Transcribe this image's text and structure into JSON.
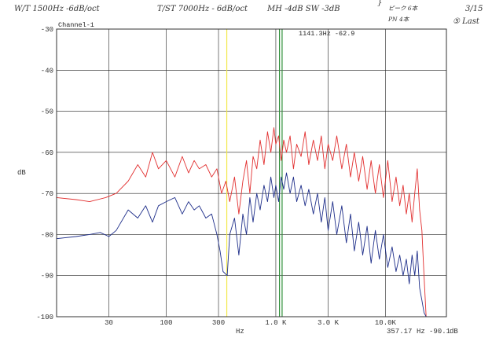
{
  "annotations": {
    "line1_a": "W/T  1500Hz -6dB/oct",
    "line1_b": "T/ST  7000Hz - 6dB/oct",
    "line1_c": "MH -4dB  SW -3dB",
    "side_top": "ピーク 6本",
    "side_bot": "PN 4本",
    "date": "3/15",
    "run": "⑤ Last"
  },
  "chart_data": {
    "type": "line",
    "title": "Channel-1",
    "xscale": "log",
    "xlim": [
      10,
      36000
    ],
    "ylim": [
      -100,
      -30
    ],
    "grid": true,
    "xlabel": "Hz",
    "ylabel": "dB",
    "y_ticks": [
      -30,
      -40,
      -50,
      -60,
      -70,
      -80,
      -90,
      -100
    ],
    "x_ticks": [
      {
        "value": 30,
        "label": "30"
      },
      {
        "value": 100,
        "label": "100"
      },
      {
        "value": 300,
        "label": "300"
      },
      {
        "value": 1000,
        "label": "1.0 K"
      },
      {
        "value": 3000,
        "label": "3.0 K"
      },
      {
        "value": 10000,
        "label": "10.0K"
      }
    ],
    "cursor_readout": "1141.3Hz -62.9",
    "marker_readout": {
      "freq": "357.17",
      "unit": "Hz",
      "level": "-90.1",
      "level_unit": "dB"
    },
    "markers": [
      {
        "x": 357,
        "color": "#f2e84a"
      },
      {
        "x": 1080,
        "color": "#2f8f3a"
      },
      {
        "x": 1141,
        "color": "#2f8f3a"
      }
    ],
    "series": [
      {
        "color": "#e23030",
        "points": [
          [
            10,
            -71
          ],
          [
            15,
            -71.5
          ],
          [
            20,
            -72
          ],
          [
            28,
            -71
          ],
          [
            35,
            -70
          ],
          [
            45,
            -67
          ],
          [
            55,
            -63
          ],
          [
            65,
            -66
          ],
          [
            75,
            -60
          ],
          [
            85,
            -64
          ],
          [
            100,
            -62
          ],
          [
            120,
            -66
          ],
          [
            140,
            -61
          ],
          [
            160,
            -65
          ],
          [
            180,
            -62
          ],
          [
            200,
            -64
          ],
          [
            230,
            -63
          ],
          [
            260,
            -66
          ],
          [
            290,
            -64
          ],
          [
            320,
            -70
          ],
          [
            350,
            -67
          ],
          [
            380,
            -72
          ],
          [
            420,
            -66
          ],
          [
            460,
            -75
          ],
          [
            500,
            -67
          ],
          [
            540,
            -62
          ],
          [
            580,
            -70
          ],
          [
            620,
            -61
          ],
          [
            670,
            -64
          ],
          [
            720,
            -57
          ],
          [
            780,
            -63
          ],
          [
            840,
            -55
          ],
          [
            900,
            -60
          ],
          [
            960,
            -54
          ],
          [
            1000,
            -58
          ],
          [
            1060,
            -56
          ],
          [
            1120,
            -62
          ],
          [
            1180,
            -57
          ],
          [
            1250,
            -60
          ],
          [
            1350,
            -56
          ],
          [
            1450,
            -64
          ],
          [
            1550,
            -58
          ],
          [
            1700,
            -61
          ],
          [
            1850,
            -55
          ],
          [
            2000,
            -63
          ],
          [
            2200,
            -57
          ],
          [
            2400,
            -62
          ],
          [
            2600,
            -56
          ],
          [
            2800,
            -64
          ],
          [
            3000,
            -58
          ],
          [
            3300,
            -62
          ],
          [
            3600,
            -56
          ],
          [
            4000,
            -64
          ],
          [
            4400,
            -58
          ],
          [
            4800,
            -66
          ],
          [
            5200,
            -60
          ],
          [
            5700,
            -67
          ],
          [
            6200,
            -61
          ],
          [
            6800,
            -69
          ],
          [
            7400,
            -62
          ],
          [
            8100,
            -70
          ],
          [
            8800,
            -63
          ],
          [
            9600,
            -71
          ],
          [
            10500,
            -62
          ],
          [
            11500,
            -72
          ],
          [
            12500,
            -66
          ],
          [
            13500,
            -73
          ],
          [
            14500,
            -68
          ],
          [
            15500,
            -75
          ],
          [
            16500,
            -70
          ],
          [
            17500,
            -77
          ],
          [
            18500,
            -70
          ],
          [
            19500,
            -64
          ],
          [
            20500,
            -74
          ],
          [
            21500,
            -79
          ],
          [
            22500,
            -90
          ],
          [
            23500,
            -100
          ]
        ]
      },
      {
        "color": "#1f2f8a",
        "points": [
          [
            10,
            -81
          ],
          [
            15,
            -80.5
          ],
          [
            20,
            -80
          ],
          [
            25,
            -79.5
          ],
          [
            30,
            -80.5
          ],
          [
            35,
            -79
          ],
          [
            45,
            -74
          ],
          [
            55,
            -76
          ],
          [
            65,
            -73
          ],
          [
            75,
            -77
          ],
          [
            85,
            -73
          ],
          [
            100,
            -72
          ],
          [
            120,
            -71
          ],
          [
            140,
            -75
          ],
          [
            160,
            -72
          ],
          [
            180,
            -74
          ],
          [
            200,
            -73
          ],
          [
            230,
            -76
          ],
          [
            260,
            -75
          ],
          [
            290,
            -80
          ],
          [
            310,
            -84
          ],
          [
            330,
            -89
          ],
          [
            360,
            -90
          ],
          [
            380,
            -80
          ],
          [
            420,
            -76
          ],
          [
            460,
            -85
          ],
          [
            500,
            -75
          ],
          [
            540,
            -80
          ],
          [
            580,
            -71
          ],
          [
            620,
            -77
          ],
          [
            670,
            -70
          ],
          [
            720,
            -74
          ],
          [
            780,
            -68
          ],
          [
            840,
            -72
          ],
          [
            900,
            -66
          ],
          [
            960,
            -71
          ],
          [
            1000,
            -68
          ],
          [
            1060,
            -72
          ],
          [
            1120,
            -66
          ],
          [
            1180,
            -69
          ],
          [
            1250,
            -65
          ],
          [
            1350,
            -70
          ],
          [
            1450,
            -66
          ],
          [
            1550,
            -72
          ],
          [
            1700,
            -68
          ],
          [
            1850,
            -73
          ],
          [
            2000,
            -69
          ],
          [
            2200,
            -75
          ],
          [
            2400,
            -70
          ],
          [
            2600,
            -77
          ],
          [
            2800,
            -71
          ],
          [
            3000,
            -79
          ],
          [
            3300,
            -72
          ],
          [
            3600,
            -80
          ],
          [
            4000,
            -73
          ],
          [
            4400,
            -82
          ],
          [
            4800,
            -75
          ],
          [
            5200,
            -84
          ],
          [
            5700,
            -77
          ],
          [
            6200,
            -85
          ],
          [
            6800,
            -78
          ],
          [
            7400,
            -87
          ],
          [
            8100,
            -79
          ],
          [
            8800,
            -86
          ],
          [
            9600,
            -80
          ],
          [
            10500,
            -88
          ],
          [
            11500,
            -83
          ],
          [
            12500,
            -89
          ],
          [
            13500,
            -85
          ],
          [
            14500,
            -90
          ],
          [
            15500,
            -86
          ],
          [
            16500,
            -92
          ],
          [
            17500,
            -85
          ],
          [
            18500,
            -90
          ],
          [
            19500,
            -84
          ],
          [
            20500,
            -93
          ],
          [
            21500,
            -96
          ],
          [
            22500,
            -99
          ],
          [
            23500,
            -100
          ]
        ]
      }
    ]
  }
}
